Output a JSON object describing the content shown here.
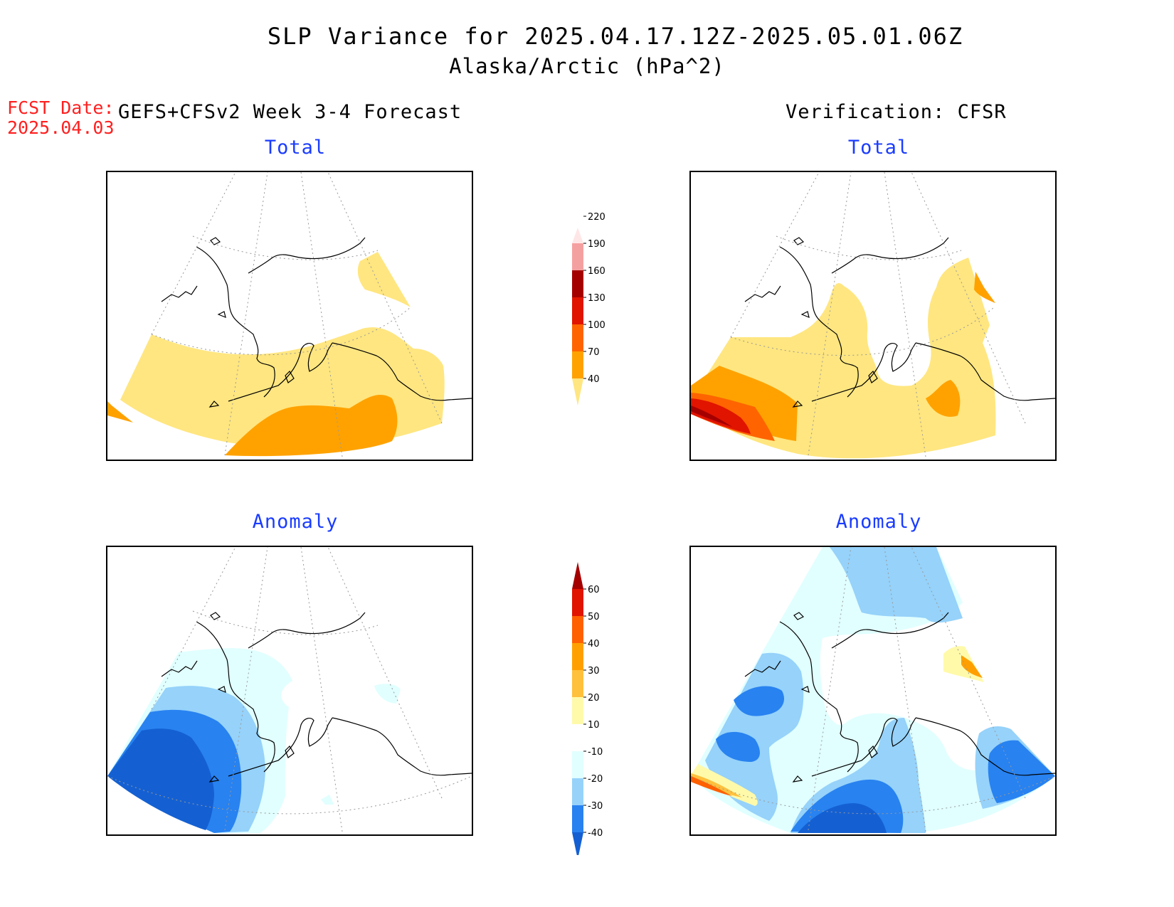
{
  "header": {
    "title": "SLP Variance for 2025.04.17.12Z-2025.05.01.06Z",
    "subtitle": "Alaska/Arctic (hPa^2)",
    "fcst_label": "FCST Date:",
    "fcst_date": "2025.04.03",
    "left_heading": "GEFS+CFSv2 Week 3-4 Forecast",
    "right_heading": "Verification: CFSR"
  },
  "panels": {
    "forecast_total": {
      "title": "Total"
    },
    "verification_total": {
      "title": "Total"
    },
    "forecast_anomaly": {
      "title": "Anomaly"
    },
    "verification_anomaly": {
      "title": "Anomaly"
    }
  },
  "colorbars": {
    "total": {
      "levels": [
        "40",
        "70",
        "100",
        "130",
        "160",
        "190",
        "220"
      ],
      "colors": [
        "#ffe680",
        "#ffa200",
        "#ff6400",
        "#e11400",
        "#a50000",
        "#f5a0a0",
        "#ffe6e6"
      ]
    },
    "anomaly": {
      "levels": [
        "-40",
        "-30",
        "-20",
        "-10",
        "10",
        "20",
        "30",
        "40",
        "50",
        "60"
      ],
      "colors": [
        "#1460d2",
        "#2882f0",
        "#96d2fa",
        "#e1ffff",
        "#ffffff",
        "#fffaaa",
        "#ffc03c",
        "#ffa000",
        "#ff6000",
        "#e11400",
        "#a50000"
      ]
    }
  },
  "map_colors": {
    "total_40_70": "#ffe680",
    "total_70_100": "#ffa200",
    "total_100_130": "#ff6400",
    "total_130_160": "#e11400",
    "total_160_190": "#a50000",
    "anom_lt_40": "#1460d2",
    "anom_40_30": "#2882f0",
    "anom_30_20": "#96d2fa",
    "anom_20_10": "#e1ffff",
    "anom_10_20": "#fffaaa",
    "anom_20_30": "#ffc03c",
    "anom_30_40": "#ffa000",
    "anom_40_50": "#ff6000"
  }
}
